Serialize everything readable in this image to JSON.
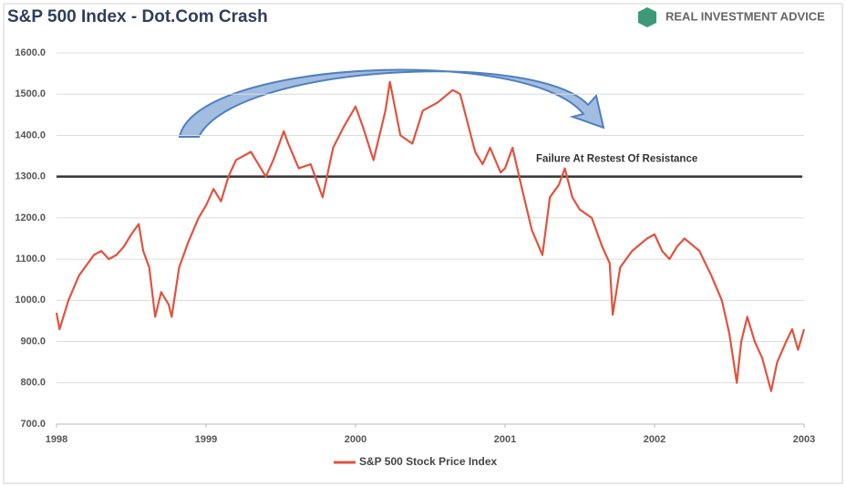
{
  "chart_data": {
    "type": "line",
    "title": "S&P 500 Index - Dot.Com Crash",
    "brand": "REAL INVESTMENT ADVICE",
    "annotation": "Failure At Restest Of Resistance",
    "x": [
      1998.0,
      1998.02,
      1998.08,
      1998.15,
      1998.25,
      1998.3,
      1998.35,
      1998.4,
      1998.45,
      1998.5,
      1998.55,
      1998.58,
      1998.62,
      1998.66,
      1998.7,
      1998.75,
      1998.77,
      1998.82,
      1998.88,
      1998.95,
      1999.0,
      1999.05,
      1999.1,
      1999.15,
      1999.2,
      1999.3,
      1999.35,
      1999.4,
      1999.45,
      1999.52,
      1999.55,
      1999.62,
      1999.7,
      1999.78,
      1999.85,
      1999.92,
      2000.0,
      2000.05,
      2000.12,
      2000.2,
      2000.23,
      2000.3,
      2000.38,
      2000.45,
      2000.55,
      2000.65,
      2000.7,
      2000.75,
      2000.8,
      2000.85,
      2000.9,
      2000.97,
      2001.0,
      2001.05,
      2001.12,
      2001.18,
      2001.25,
      2001.3,
      2001.36,
      2001.4,
      2001.45,
      2001.5,
      2001.58,
      2001.65,
      2001.7,
      2001.72,
      2001.77,
      2001.85,
      2001.95,
      2002.0,
      2002.05,
      2002.1,
      2002.15,
      2002.2,
      2002.3,
      2002.38,
      2002.45,
      2002.5,
      2002.55,
      2002.58,
      2002.62,
      2002.67,
      2002.72,
      2002.78,
      2002.82,
      2002.88,
      2002.92,
      2002.96,
      2003.0
    ],
    "series": [
      {
        "name": "S&P 500 Stock Price Index",
        "color": "#e0533f",
        "values": [
          970,
          930,
          1000,
          1060,
          1110,
          1120,
          1100,
          1110,
          1130,
          1160,
          1185,
          1120,
          1080,
          960,
          1020,
          990,
          960,
          1080,
          1140,
          1200,
          1230,
          1270,
          1240,
          1300,
          1340,
          1360,
          1330,
          1300,
          1340,
          1410,
          1380,
          1320,
          1330,
          1250,
          1370,
          1420,
          1470,
          1420,
          1340,
          1460,
          1530,
          1400,
          1380,
          1460,
          1480,
          1510,
          1500,
          1430,
          1360,
          1330,
          1370,
          1310,
          1320,
          1370,
          1260,
          1170,
          1110,
          1250,
          1280,
          1320,
          1250,
          1220,
          1200,
          1130,
          1090,
          965,
          1080,
          1120,
          1150,
          1160,
          1120,
          1100,
          1130,
          1150,
          1120,
          1060,
          1000,
          920,
          800,
          900,
          960,
          900,
          860,
          780,
          850,
          900,
          930,
          880,
          930
        ]
      }
    ],
    "xlim": [
      1998,
      2003
    ],
    "xticks": [
      1998,
      1999,
      2000,
      2001,
      2002,
      2003
    ],
    "ylim": [
      700,
      1600
    ],
    "yticks": [
      {
        "value": 700,
        "label": "700.0"
      },
      {
        "value": 800,
        "label": "800.0"
      },
      {
        "value": 900,
        "label": "900.0"
      },
      {
        "value": 1000,
        "label": "1000.0"
      },
      {
        "value": 1100,
        "label": "1100.0"
      },
      {
        "value": 1200,
        "label": "1200.0"
      },
      {
        "value": 1300,
        "label": "1300.0"
      },
      {
        "value": 1400,
        "label": "1400.0"
      },
      {
        "value": 1500,
        "label": "1500.0"
      },
      {
        "value": 1600,
        "label": "1600.0"
      }
    ],
    "reference_line": {
      "value": 1300,
      "color": "#333333"
    },
    "grid": true
  }
}
